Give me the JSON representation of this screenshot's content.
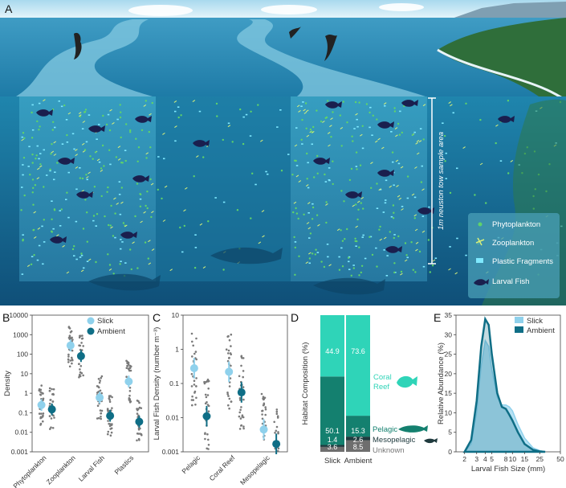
{
  "panel_a": {
    "letter": "A",
    "tow_label": "1m neuston tow sample area",
    "legend": [
      "Phytoplankton",
      "Zooplankton",
      "Plastic Fragments",
      "Larval Fish"
    ]
  },
  "chart_data": [
    {
      "panel": "B",
      "type": "scatter",
      "ylabel": "Density",
      "yscale": "log",
      "ylim": [
        0.001,
        10000
      ],
      "yticks": [
        "0.001",
        "0.01",
        "0.1",
        "1",
        "10",
        "100",
        "1000",
        "10000"
      ],
      "categories": [
        "Phytoplankton",
        "Zooplankton",
        "Larval Fish",
        "Plastics"
      ],
      "legend": {
        "position": "top-right",
        "entries": [
          "Slick",
          "Ambient"
        ]
      },
      "series": [
        {
          "name": "Slick",
          "color": "#8fd1ec",
          "values": [
            0.25,
            280,
            0.6,
            4
          ]
        },
        {
          "name": "Ambient",
          "color": "#0f6e86",
          "values": [
            0.15,
            80,
            0.07,
            0.035
          ]
        }
      ]
    },
    {
      "panel": "C",
      "type": "scatter",
      "ylabel": "Larval Fish Density (number m⁻³)",
      "yscale": "log",
      "ylim": [
        0.001,
        10
      ],
      "yticks": [
        "0.001",
        "0.01",
        "0.1",
        "1",
        "10"
      ],
      "categories": [
        "Pelagic",
        "Coral Reef",
        "Mesopelagic"
      ],
      "series": [
        {
          "name": "Slick",
          "color": "#8fd1ec",
          "values": [
            0.28,
            0.22,
            0.0045
          ]
        },
        {
          "name": "Ambient",
          "color": "#0f6e86",
          "values": [
            0.011,
            0.055,
            0.0017
          ]
        }
      ]
    },
    {
      "panel": "D",
      "type": "bar",
      "stacked": true,
      "ylabel": "Habitat Composition (%)",
      "categories": [
        "Slick",
        "Ambient"
      ],
      "series": [
        {
          "name": "Unknown",
          "color": "#6e6e6e",
          "values": [
            3.6,
            8.5
          ]
        },
        {
          "name": "Mesopelagic",
          "color": "#1f3a3e",
          "values": [
            1.4,
            2.6
          ]
        },
        {
          "name": "Pelagic",
          "color": "#14806f",
          "values": [
            50.1,
            15.3
          ]
        },
        {
          "name": "Coral Reef",
          "color": "#2fd4b8",
          "values": [
            44.9,
            73.6
          ]
        }
      ],
      "labels": {
        "Slick": [
          "3.6",
          "1.4",
          "50.1",
          "44.9"
        ],
        "Ambient": [
          "8.5",
          "2.6",
          "15.3",
          "73.6"
        ]
      },
      "side_labels": [
        "Coral",
        "Reef",
        "Pelagic",
        "Mesopelagic",
        "Unknown"
      ]
    },
    {
      "panel": "E",
      "type": "area",
      "xlabel": "Larval Fish Size (mm)",
      "ylabel": "Relative Abundance (%)",
      "xscale": "log",
      "xticks": [
        "2",
        "3",
        "4",
        "5",
        "8",
        "10",
        "15",
        "25",
        "50"
      ],
      "ylim": [
        0,
        35
      ],
      "yticks": [
        "0",
        "5",
        "10",
        "15",
        "20",
        "25",
        "30",
        "35"
      ],
      "legend": {
        "position": "top-right",
        "entries": [
          "Slick",
          "Ambient"
        ]
      },
      "series": [
        {
          "name": "Slick",
          "color": "#8fd1ec",
          "x": [
            2,
            2.5,
            3,
            3.5,
            4,
            4.5,
            5,
            6,
            7,
            8,
            9,
            10,
            12,
            15,
            20,
            25,
            30
          ],
          "y": [
            0,
            2,
            10,
            22,
            28.5,
            27,
            21,
            14,
            12,
            12,
            11.5,
            10.5,
            7,
            3.5,
            1,
            0.3,
            0
          ]
        },
        {
          "name": "Ambient",
          "color": "#0f6e86",
          "x": [
            2,
            2.5,
            3,
            3.5,
            4,
            4.5,
            5,
            6,
            7,
            8,
            9,
            10,
            12,
            15,
            20,
            25,
            30
          ],
          "y": [
            0,
            3,
            13,
            27,
            34,
            32.5,
            25,
            15,
            11.5,
            11,
            9.5,
            8,
            5,
            2,
            0.5,
            0.1,
            0
          ]
        }
      ]
    }
  ]
}
